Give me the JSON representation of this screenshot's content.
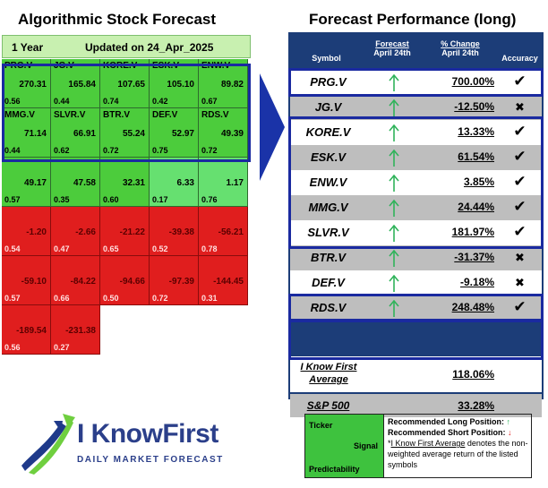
{
  "left_title": "Algorithmic Stock Forecast",
  "right_title": "Forecast Performance (long)",
  "grid_header": {
    "period": "1 Year",
    "updated": "Updated on 24_Apr_2025"
  },
  "grid": [
    {
      "symbol": "PRG.V",
      "signal": "270.31",
      "predictability": "0.56",
      "style": "pos"
    },
    {
      "symbol": "JG.V",
      "signal": "165.84",
      "predictability": "0.44",
      "style": "pos"
    },
    {
      "symbol": "KORE.V",
      "signal": "107.65",
      "predictability": "0.74",
      "style": "pos"
    },
    {
      "symbol": "ESK.V",
      "signal": "105.10",
      "predictability": "0.42",
      "style": "pos"
    },
    {
      "symbol": "ENW.V",
      "signal": "89.82",
      "predictability": "0.67",
      "style": "pos"
    },
    {
      "symbol": "MMG.V",
      "signal": "71.14",
      "predictability": "0.44",
      "style": "pos"
    },
    {
      "symbol": "SLVR.V",
      "signal": "66.91",
      "predictability": "0.62",
      "style": "pos"
    },
    {
      "symbol": "BTR.V",
      "signal": "55.24",
      "predictability": "0.72",
      "style": "pos"
    },
    {
      "symbol": "DEF.V",
      "signal": "52.97",
      "predictability": "0.75",
      "style": "pos"
    },
    {
      "symbol": "RDS.V",
      "signal": "49.39",
      "predictability": "0.72",
      "style": "pos"
    },
    {
      "symbol": "",
      "signal": "49.17",
      "predictability": "0.57",
      "style": "pos"
    },
    {
      "symbol": "",
      "signal": "47.58",
      "predictability": "0.35",
      "style": "pos"
    },
    {
      "symbol": "",
      "signal": "32.31",
      "predictability": "0.60",
      "style": "pos"
    },
    {
      "symbol": "",
      "signal": "6.33",
      "predictability": "0.17",
      "style": "posl"
    },
    {
      "symbol": "",
      "signal": "1.17",
      "predictability": "0.76",
      "style": "posl"
    },
    {
      "symbol": "",
      "signal": "-1.20",
      "predictability": "0.54",
      "style": "neg"
    },
    {
      "symbol": "",
      "signal": "-2.66",
      "predictability": "0.47",
      "style": "neg"
    },
    {
      "symbol": "",
      "signal": "-21.22",
      "predictability": "0.65",
      "style": "neg"
    },
    {
      "symbol": "",
      "signal": "-39.38",
      "predictability": "0.52",
      "style": "neg"
    },
    {
      "symbol": "",
      "signal": "-56.21",
      "predictability": "0.78",
      "style": "neg"
    },
    {
      "symbol": "",
      "signal": "-59.10",
      "predictability": "0.57",
      "style": "neg"
    },
    {
      "symbol": "",
      "signal": "-84.22",
      "predictability": "0.66",
      "style": "neg"
    },
    {
      "symbol": "",
      "signal": "-94.66",
      "predictability": "0.50",
      "style": "neg"
    },
    {
      "symbol": "",
      "signal": "-97.39",
      "predictability": "0.72",
      "style": "neg"
    },
    {
      "symbol": "",
      "signal": "-144.45",
      "predictability": "0.31",
      "style": "neg"
    },
    {
      "symbol": "",
      "signal": "-189.54",
      "predictability": "0.56",
      "style": "neg"
    },
    {
      "symbol": "",
      "signal": "-231.38",
      "predictability": "0.27",
      "style": "neg"
    }
  ],
  "table_header": {
    "symbol": "Symbol",
    "forecast_top": "Forecast",
    "forecast_bottom": "April 24th",
    "change_top": "% Change",
    "change_bottom": "April 24th",
    "accuracy": "Accuracy"
  },
  "rows": [
    {
      "symbol": "PRG.V",
      "change": "700.00%",
      "accurate": true
    },
    {
      "symbol": "JG.V",
      "change": "-12.50%",
      "accurate": false
    },
    {
      "symbol": "KORE.V",
      "change": "13.33%",
      "accurate": true
    },
    {
      "symbol": "ESK.V",
      "change": "61.54%",
      "accurate": true
    },
    {
      "symbol": "ENW.V",
      "change": "3.85%",
      "accurate": true
    },
    {
      "symbol": "MMG.V",
      "change": "24.44%",
      "accurate": true
    },
    {
      "symbol": "SLVR.V",
      "change": "181.97%",
      "accurate": true
    },
    {
      "symbol": "BTR.V",
      "change": "-31.37%",
      "accurate": false
    },
    {
      "symbol": "DEF.V",
      "change": "-9.18%",
      "accurate": false
    },
    {
      "symbol": "RDS.V",
      "change": "248.48%",
      "accurate": true
    }
  ],
  "average": {
    "label_line1": "I Know First",
    "label_line2": "Average",
    "change": "118.06%"
  },
  "benchmark": {
    "label": "S&P 500",
    "change": "33.28%"
  },
  "icons": {
    "up_arrow": "up-arrow-icon",
    "check": "check-icon",
    "cross": "cross-icon",
    "logo": "i-know-first-logo"
  },
  "colors": {
    "grid_positive": "#4ccc3c",
    "grid_negative": "#e01e1e",
    "table_navy": "#1c3d78",
    "highlight_border": "#1a2aa0",
    "arrow_up": "#2fb35a"
  },
  "logo": {
    "name": "I KnowFirst",
    "tagline": "DAILY MARKET FORECAST"
  },
  "legend": {
    "ticker": "Ticker",
    "signal": "Signal",
    "predictability": "Predictability",
    "long_label": "Recommended Long Position:",
    "short_label": "Recommended Short Position:",
    "note_link": "I Know First Average",
    "note_rest": "denotes the non-weighted average return of the listed symbols"
  }
}
